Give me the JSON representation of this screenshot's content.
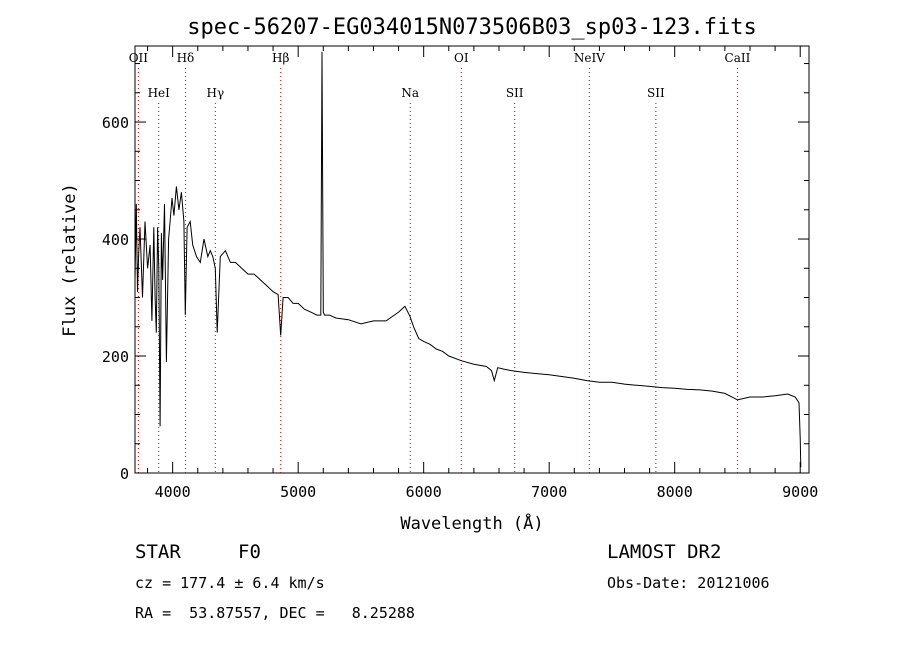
{
  "chart_data": {
    "type": "line",
    "title": "spec-56207-EG034015N073506B03_sp03-123.fits",
    "xlabel": "Wavelength (Å)",
    "ylabel": "Flux (relative)",
    "xlim": [
      3700,
      9070
    ],
    "ylim": [
      0,
      730
    ],
    "xticks": [
      4000,
      5000,
      6000,
      7000,
      8000,
      9000
    ],
    "yticks": [
      0,
      200,
      400,
      600
    ],
    "grid": false,
    "line_color": "#000000",
    "marker_color": "#cc0000",
    "series": [
      {
        "x": [
          3700,
          3710,
          3720,
          3730,
          3740,
          3760,
          3780,
          3800,
          3820,
          3835,
          3850,
          3860,
          3870,
          3880,
          3890,
          3900,
          3910,
          3920,
          3935,
          3950,
          3968,
          3980,
          3995,
          4010,
          4030,
          4050,
          4070,
          4090,
          4101,
          4115,
          4140,
          4160,
          4190,
          4220,
          4250,
          4280,
          4300,
          4320,
          4340,
          4355,
          4380,
          4420,
          4460,
          4500,
          4550,
          4600,
          4650,
          4700,
          4750,
          4800,
          4840,
          4861,
          4880,
          4920,
          4960,
          5000,
          5050,
          5100,
          5150,
          5180,
          5190,
          5200,
          5210,
          5250,
          5300,
          5400,
          5500,
          5600,
          5700,
          5800,
          5850,
          5890,
          5920,
          5960,
          6000,
          6050,
          6100,
          6150,
          6200,
          6300,
          6400,
          6500,
          6540,
          6563,
          6590,
          6650,
          6700,
          6800,
          6900,
          7000,
          7100,
          7200,
          7300,
          7400,
          7500,
          7600,
          7700,
          7800,
          7900,
          8000,
          8100,
          8200,
          8300,
          8400,
          8500,
          8600,
          8700,
          8800,
          8900,
          8960,
          8990,
          9000,
          9005
        ],
        "y": [
          330,
          460,
          310,
          380,
          420,
          300,
          430,
          350,
          390,
          260,
          420,
          300,
          240,
          420,
          350,
          80,
          410,
          330,
          460,
          190,
          400,
          430,
          470,
          440,
          490,
          450,
          480,
          430,
          270,
          420,
          430,
          390,
          370,
          360,
          400,
          370,
          380,
          370,
          350,
          240,
          370,
          380,
          360,
          360,
          350,
          340,
          340,
          330,
          320,
          310,
          305,
          235,
          300,
          300,
          290,
          290,
          280,
          275,
          270,
          270,
          720,
          275,
          270,
          270,
          265,
          262,
          255,
          260,
          260,
          275,
          285,
          268,
          250,
          230,
          225,
          220,
          212,
          208,
          200,
          192,
          186,
          182,
          175,
          158,
          180,
          177,
          175,
          172,
          170,
          168,
          165,
          162,
          158,
          155,
          155,
          152,
          150,
          148,
          146,
          145,
          143,
          142,
          140,
          136,
          125,
          130,
          130,
          132,
          135,
          130,
          120,
          60,
          10
        ]
      }
    ],
    "lines": [
      {
        "label": "OII",
        "x": 3727
      },
      {
        "label": "HeI",
        "x": 3889
      },
      {
        "label": "Hδ",
        "x": 4102
      },
      {
        "label": "Hγ",
        "x": 4340
      },
      {
        "label": "Hβ",
        "x": 4861
      },
      {
        "label": "Na",
        "x": 5893
      },
      {
        "label": "OI",
        "x": 6300
      },
      {
        "label": "SII",
        "x": 6725
      },
      {
        "label": "NeIV",
        "x": 7320
      },
      {
        "label": "SII",
        "x": 7850
      },
      {
        "label": "CaII",
        "x": 8500
      }
    ]
  },
  "info": {
    "object_type": "STAR",
    "subclass": "F0",
    "velocity": "cz = 177.4 ± 6.4 km/s",
    "coords": "RA =  53.87557, DEC =   8.25288",
    "survey": "LAMOST DR2",
    "obs_date": "Obs-Date: 20121006"
  }
}
